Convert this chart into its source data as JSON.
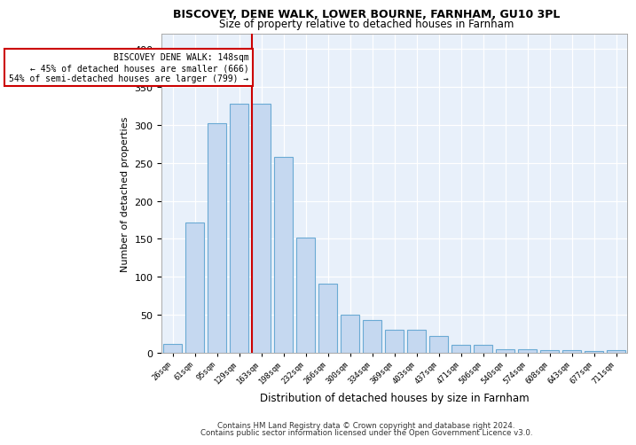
{
  "title1": "BISCOVEY, DENE WALK, LOWER BOURNE, FARNHAM, GU10 3PL",
  "title2": "Size of property relative to detached houses in Farnham",
  "xlabel": "Distribution of detached houses by size in Farnham",
  "ylabel": "Number of detached properties",
  "bin_labels": [
    "26sqm",
    "61sqm",
    "95sqm",
    "129sqm",
    "163sqm",
    "198sqm",
    "232sqm",
    "266sqm",
    "300sqm",
    "334sqm",
    "369sqm",
    "403sqm",
    "437sqm",
    "471sqm",
    "506sqm",
    "540sqm",
    "574sqm",
    "608sqm",
    "643sqm",
    "677sqm",
    "711sqm"
  ],
  "bar_values": [
    12,
    172,
    302,
    328,
    328,
    258,
    152,
    91,
    50,
    43,
    30,
    30,
    22,
    11,
    10,
    5,
    5,
    4,
    4,
    2,
    3
  ],
  "bar_color": "#c5d8f0",
  "bar_edgecolor": "#6aaad4",
  "vline_color": "#cc0000",
  "annotation_text": "BISCOVEY DENE WALK: 148sqm\n← 45% of detached houses are smaller (666)\n54% of semi-detached houses are larger (799) →",
  "annotation_box_color": "#ffffff",
  "annotation_box_edgecolor": "#cc0000",
  "ylim": [
    0,
    420
  ],
  "yticks": [
    0,
    50,
    100,
    150,
    200,
    250,
    300,
    350,
    400
  ],
  "footer1": "Contains HM Land Registry data © Crown copyright and database right 2024.",
  "footer2": "Contains public sector information licensed under the Open Government Licence v3.0.",
  "plot_bg_color": "#e8f0fa",
  "grid_color": "#ffffff"
}
